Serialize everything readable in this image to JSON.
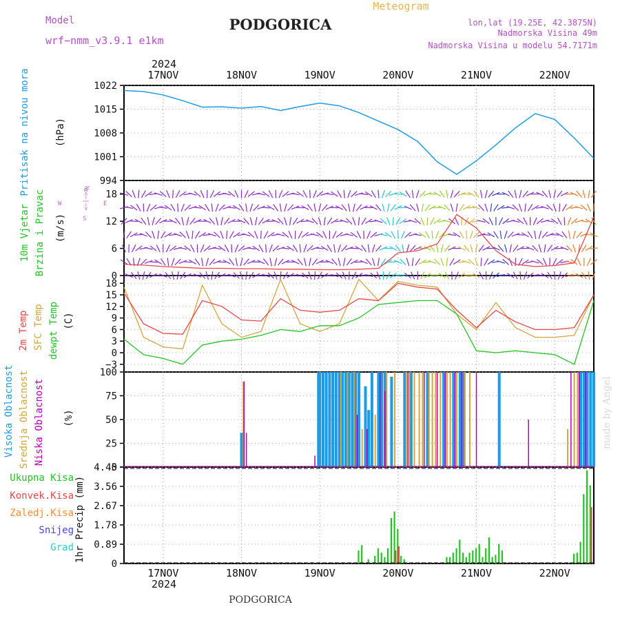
{
  "header": {
    "model_label": "Model",
    "model_name": "wrf−nmm_v3.9.1 e1km",
    "title": "PODGORICA",
    "meteogram_label": "Meteogram",
    "lonlat": "lon,lat (19.25E, 42.3875N)",
    "elevation": "Nadmorska Visina 49m",
    "elevation_model": "Nadmorska Visina u modelu 54.7171m",
    "footer_title": "PODGORICA",
    "credit": "made by Angel"
  },
  "time_axis": {
    "year": "2024",
    "days": [
      "17NOV",
      "18NOV",
      "19NOV",
      "20NOV",
      "21NOV",
      "22NOV"
    ]
  },
  "colors": {
    "pressure": "#1e9be6",
    "wind_label": "#22c422",
    "t2m": "#e64646",
    "tsfc": "#d4a53c",
    "dewpt": "#22c422",
    "cloud_high": "#1e9be6",
    "cloud_mid": "#d4a53c",
    "cloud_low": "#b400b4",
    "precip_total": "#22c422",
    "precip_conv": "#e64646",
    "precip_frz": "#ff8c32",
    "precip_snow": "#4646e6",
    "precip_grad": "#32c8c8",
    "compass": "#c864c8",
    "header_purple": "#b450c8",
    "header_orange": "#e6b450"
  },
  "panels": {
    "pressure": {
      "labels": [
        "Pritisak na nivou mora"
      ],
      "unit": "(hPa)",
      "ticks": [
        "1022",
        "1015",
        "1008",
        "1001",
        "994"
      ]
    },
    "wind": {
      "labels": [
        "10m Vjetar",
        "Brzina i Pravac"
      ],
      "unit": "(m/s)",
      "ticks": [
        "18",
        "12",
        "6",
        "0"
      ],
      "compass_text": [
        "N",
        "S",
        "W",
        "E",
        "z",
        "α<−|−>"
      ]
    },
    "temp": {
      "labels": [
        "2m Temp",
        "SFC Temp",
        "dewpt Temp"
      ],
      "unit": "(C)",
      "ticks": [
        "18",
        "15",
        "12",
        "9",
        "6",
        "3",
        "0",
        "−3"
      ]
    },
    "cloud": {
      "labels": [
        "Visoka Oblacnost",
        "Srednja Oblacnost",
        "Niska Oblacnost"
      ],
      "unit": "(%)",
      "ticks": [
        "100",
        "75",
        "50",
        "25",
        "0"
      ]
    },
    "precip": {
      "legend": [
        "Ukupna Kisa",
        "Konvek.Kisa",
        "Zaledj.Kisa",
        "Snijeg",
        "Grad"
      ],
      "unit": "1hr Precip (mm)",
      "ticks": [
        "4.45",
        "3.56",
        "2.67",
        "1.78",
        "0.89",
        "0"
      ]
    }
  },
  "chart_data": [
    {
      "type": "line",
      "title": "Pritisak na nivou mora",
      "ylabel": "(hPa)",
      "ylim": [
        994,
        1022
      ],
      "x_unit": "hours since 2024-11-16 12 UTC",
      "series": [
        {
          "name": "Pritisak na nivou mora",
          "x": [
            0,
            6,
            12,
            18,
            24,
            30,
            36,
            42,
            48,
            54,
            60,
            66,
            72,
            78,
            84,
            90,
            96,
            102,
            108,
            114,
            120,
            126,
            132,
            138,
            144
          ],
          "y": [
            1020.5,
            1020.2,
            1019.2,
            1017.5,
            1015.6,
            1015.7,
            1015.3,
            1015.8,
            1014.6,
            1015.8,
            1016.8,
            1016.0,
            1014.0,
            1011.5,
            1009.0,
            1005.5,
            999.5,
            995.8,
            999.8,
            1004.5,
            1009.5,
            1013.7,
            1012.0,
            1006.5,
            1000.5
          ]
        }
      ]
    },
    {
      "type": "line",
      "title": "10m Vjetar Brzina i Pravac",
      "ylabel": "(m/s)",
      "ylim": [
        0,
        21
      ],
      "series": [
        {
          "name": "10m Vjetar",
          "x": [
            0,
            6,
            12,
            18,
            24,
            30,
            36,
            42,
            48,
            54,
            60,
            66,
            72,
            78,
            84,
            90,
            96,
            102,
            108,
            114,
            120,
            126,
            132,
            138,
            144
          ],
          "y": [
            2.5,
            2.3,
            2.0,
            1.8,
            1.6,
            1.6,
            1.5,
            1.5,
            1.4,
            1.4,
            1.3,
            1.3,
            1.4,
            1.6,
            5.0,
            5.5,
            7.0,
            13.5,
            10.5,
            5.5,
            2.5,
            2.0,
            2.2,
            2.8,
            13.0
          ]
        }
      ]
    },
    {
      "type": "line",
      "title": "2m Temp / SFC Temp / dewpt Temp",
      "ylabel": "(C)",
      "ylim": [
        -5,
        20
      ],
      "series": [
        {
          "name": "2m Temp",
          "x": [
            0,
            6,
            12,
            18,
            24,
            30,
            36,
            42,
            48,
            54,
            60,
            66,
            72,
            78,
            84,
            90,
            96,
            102,
            108,
            114,
            120,
            126,
            132,
            138,
            144
          ],
          "y": [
            15.5,
            7.5,
            5.0,
            4.8,
            13.5,
            12.0,
            8.5,
            8.2,
            14.0,
            11.0,
            10.5,
            11.0,
            14.0,
            13.5,
            18.0,
            17.0,
            16.5,
            11.0,
            6.5,
            11.0,
            8.0,
            6.0,
            6.0,
            6.5,
            15.0
          ]
        },
        {
          "name": "SFC Temp",
          "x": [
            0,
            6,
            12,
            18,
            24,
            30,
            36,
            42,
            48,
            54,
            60,
            66,
            72,
            78,
            84,
            90,
            96,
            102,
            108,
            114,
            120,
            126,
            132,
            138,
            144
          ],
          "y": [
            17.0,
            4.0,
            1.5,
            1.0,
            17.5,
            7.5,
            4.0,
            5.5,
            19.0,
            7.5,
            5.5,
            7.5,
            19.0,
            13.5,
            18.5,
            17.5,
            17.0,
            10.0,
            6.0,
            13.0,
            6.5,
            4.0,
            4.0,
            4.5,
            15.0
          ]
        },
        {
          "name": "dewpt Temp",
          "x": [
            0,
            6,
            12,
            18,
            24,
            30,
            36,
            42,
            48,
            54,
            60,
            66,
            72,
            78,
            84,
            90,
            96,
            102,
            108,
            114,
            120,
            126,
            132,
            138,
            144
          ],
          "y": [
            3.5,
            -0.5,
            -1.5,
            -3.0,
            2.0,
            3.0,
            3.5,
            4.5,
            6.0,
            5.5,
            7.0,
            7.0,
            9.0,
            12.5,
            13.0,
            13.5,
            13.5,
            10.0,
            0.5,
            0.0,
            0.5,
            0.0,
            -0.5,
            -3.0,
            13.5
          ]
        }
      ]
    },
    {
      "type": "bar",
      "title": "Visoka / Srednja / Niska Oblacnost",
      "ylabel": "(%)",
      "ylim": [
        0,
        100
      ],
      "series": [
        {
          "name": "Visoka Oblacnost",
          "x": [
            36,
            36.3,
            59.6,
            60,
            61,
            62,
            63,
            64,
            65,
            66,
            67,
            68,
            69,
            70,
            71,
            72,
            74,
            75,
            76,
            78,
            79,
            80,
            82,
            86,
            88,
            93,
            98,
            101,
            103,
            104,
            115,
            140,
            141,
            142,
            143,
            144
          ],
          "y": [
            36,
            36,
            100,
            100,
            100,
            100,
            100,
            100,
            100,
            100,
            100,
            100,
            100,
            100,
            100,
            100,
            85,
            60,
            100,
            100,
            100,
            100,
            95,
            100,
            100,
            100,
            100,
            100,
            100,
            100,
            100,
            100,
            100,
            100,
            100,
            100
          ]
        },
        {
          "name": "Srednja Oblacnost",
          "x": [
            36.6,
            66.5,
            68.5,
            70.5,
            73,
            77,
            80.5,
            83,
            86.5,
            87.5,
            89,
            90.5,
            91.5,
            93.5,
            94.5,
            95.5,
            97,
            99,
            100,
            102,
            104.5,
            106,
            136,
            138,
            139
          ],
          "y": [
            90,
            100,
            100,
            100,
            40,
            55,
            100,
            100,
            100,
            100,
            100,
            100,
            100,
            100,
            100,
            100,
            100,
            100,
            100,
            100,
            100,
            100,
            40,
            100,
            100
          ]
        },
        {
          "name": "Niska Oblacnost",
          "x": [
            36.8,
            37.5,
            58.5,
            71.5,
            74.5,
            78.5,
            80,
            87,
            92,
            96,
            98.5,
            101.5,
            103.5,
            108,
            124,
            137,
            139.5,
            141.5
          ],
          "y": [
            90,
            36,
            12,
            55,
            40,
            100,
            80,
            100,
            100,
            100,
            100,
            100,
            100,
            100,
            50,
            100,
            100,
            100
          ]
        }
      ]
    },
    {
      "type": "bar",
      "title": "1hr Precip",
      "ylabel": "1hr Precip (mm)",
      "ylim": [
        0,
        4.45
      ],
      "series": [
        {
          "name": "Ukupna Kisa",
          "x": [
            72,
            73,
            75,
            77,
            78,
            79,
            80,
            81,
            82,
            83,
            84,
            85,
            86,
            99,
            100,
            101,
            102,
            103,
            104,
            105,
            106,
            107,
            108,
            109,
            110,
            111,
            112,
            113,
            114,
            115,
            116,
            138,
            139,
            140,
            141,
            142,
            143
          ],
          "y": [
            0.6,
            0.85,
            0.2,
            0.35,
            0.7,
            0.5,
            0.3,
            0.7,
            2.1,
            2.4,
            1.6,
            0.35,
            0.2,
            0.3,
            0.3,
            0.5,
            0.7,
            1.1,
            0.5,
            0.3,
            0.5,
            0.6,
            0.7,
            0.9,
            0.3,
            0.7,
            1.2,
            0.3,
            0.4,
            0.9,
            0.6,
            0.45,
            0.5,
            1.0,
            3.2,
            4.3,
            3.6
          ]
        },
        {
          "name": "Konvek.Kisa",
          "x": [
            83,
            84,
            143
          ],
          "y": [
            0.6,
            0.8,
            2.6
          ]
        }
      ]
    }
  ]
}
